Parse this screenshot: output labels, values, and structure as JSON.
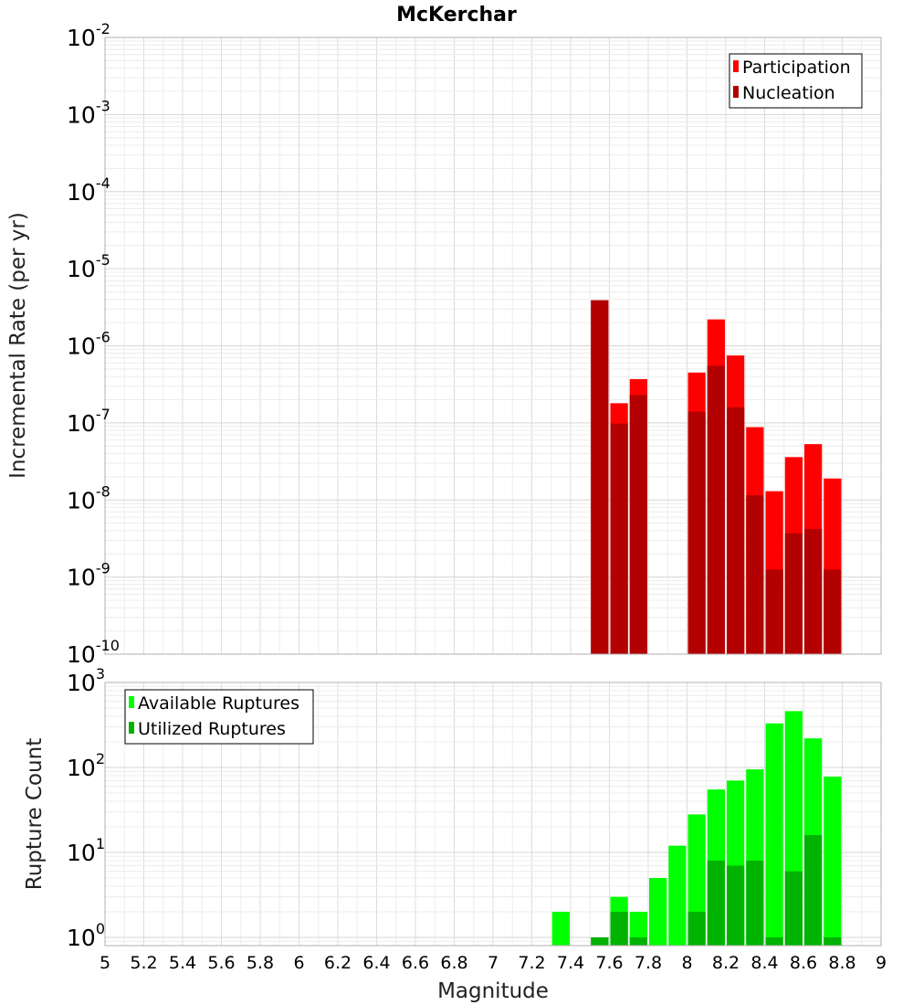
{
  "chart_data": [
    {
      "type": "bar",
      "title": "McKerchar",
      "xlabel": "",
      "ylabel": "Incremental Rate (per yr)",
      "xlim": [
        5,
        9
      ],
      "ylim": [
        1e-10,
        0.01
      ],
      "yscale": "log",
      "grid": true,
      "bar_width": 0.1,
      "legend_position": "top-right",
      "y_tick_labels": [
        {
          "base": "10",
          "exp": "-2",
          "value": 0.01
        },
        {
          "base": "10",
          "exp": "-3",
          "value": 0.001
        },
        {
          "base": "10",
          "exp": "-4",
          "value": 0.0001
        },
        {
          "base": "10",
          "exp": "-5",
          "value": 1e-05
        },
        {
          "base": "10",
          "exp": "-6",
          "value": 1e-06
        },
        {
          "base": "10",
          "exp": "-7",
          "value": 1e-07
        },
        {
          "base": "10",
          "exp": "-8",
          "value": 1e-08
        },
        {
          "base": "10",
          "exp": "-9",
          "value": 1e-09
        },
        {
          "base": "10",
          "exp": "-10",
          "value": 1e-10
        }
      ],
      "series": [
        {
          "name": "Participation",
          "color": "#ff0000",
          "points": [
            {
              "x": 7.55,
              "y": 3.9e-06
            },
            {
              "x": 7.65,
              "y": 1.8e-07
            },
            {
              "x": 7.75,
              "y": 3.7e-07
            },
            {
              "x": 8.05,
              "y": 4.5e-07
            },
            {
              "x": 8.15,
              "y": 2.2e-06
            },
            {
              "x": 8.25,
              "y": 7.5e-07
            },
            {
              "x": 8.35,
              "y": 8.8e-08
            },
            {
              "x": 8.45,
              "y": 1.3e-08
            },
            {
              "x": 8.55,
              "y": 3.6e-08
            },
            {
              "x": 8.65,
              "y": 5.3e-08
            },
            {
              "x": 8.75,
              "y": 1.9e-08
            }
          ]
        },
        {
          "name": "Nucleation",
          "color": "#b30000",
          "points": [
            {
              "x": 7.55,
              "y": 3.9e-06
            },
            {
              "x": 7.65,
              "y": 9.8e-08
            },
            {
              "x": 7.75,
              "y": 2.3e-07
            },
            {
              "x": 8.05,
              "y": 1.4e-07
            },
            {
              "x": 8.15,
              "y": 5.5e-07
            },
            {
              "x": 8.25,
              "y": 1.6e-07
            },
            {
              "x": 8.35,
              "y": 1.15e-08
            },
            {
              "x": 8.45,
              "y": 1.25e-09
            },
            {
              "x": 8.55,
              "y": 3.7e-09
            },
            {
              "x": 8.65,
              "y": 4.2e-09
            },
            {
              "x": 8.75,
              "y": 1.25e-09
            }
          ]
        }
      ]
    },
    {
      "type": "bar",
      "title": "",
      "xlabel": "Magnitude",
      "ylabel": "Rupture Count",
      "xlim": [
        5,
        9
      ],
      "ylim": [
        0.8,
        1000
      ],
      "yscale": "log",
      "grid": true,
      "bar_width": 0.1,
      "legend_position": "top-left",
      "x_tick_labels": [
        "5",
        "5.2",
        "5.4",
        "5.6",
        "5.8",
        "6",
        "6.2",
        "6.4",
        "6.6",
        "6.8",
        "7",
        "7.2",
        "7.4",
        "7.6",
        "7.8",
        "8",
        "8.2",
        "8.4",
        "8.6",
        "8.8",
        "9"
      ],
      "y_tick_labels": [
        {
          "base": "10",
          "exp": "3",
          "value": 1000
        },
        {
          "base": "10",
          "exp": "2",
          "value": 100
        },
        {
          "base": "10",
          "exp": "1",
          "value": 10
        },
        {
          "base": "10",
          "exp": "0",
          "value": 1
        }
      ],
      "series": [
        {
          "name": "Available Ruptures",
          "color": "#00ff00",
          "points": [
            {
              "x": 7.35,
              "y": 2
            },
            {
              "x": 7.55,
              "y": 1
            },
            {
              "x": 7.65,
              "y": 3
            },
            {
              "x": 7.75,
              "y": 2
            },
            {
              "x": 7.85,
              "y": 5
            },
            {
              "x": 7.95,
              "y": 12
            },
            {
              "x": 8.05,
              "y": 28
            },
            {
              "x": 8.15,
              "y": 55
            },
            {
              "x": 8.25,
              "y": 70
            },
            {
              "x": 8.35,
              "y": 95
            },
            {
              "x": 8.45,
              "y": 330
            },
            {
              "x": 8.55,
              "y": 460
            },
            {
              "x": 8.65,
              "y": 220
            },
            {
              "x": 8.75,
              "y": 78
            }
          ]
        },
        {
          "name": "Utilized Ruptures",
          "color": "#00b300",
          "points": [
            {
              "x": 7.55,
              "y": 1
            },
            {
              "x": 7.65,
              "y": 2
            },
            {
              "x": 7.75,
              "y": 1
            },
            {
              "x": 8.05,
              "y": 2
            },
            {
              "x": 8.15,
              "y": 8
            },
            {
              "x": 8.25,
              "y": 7
            },
            {
              "x": 8.35,
              "y": 8
            },
            {
              "x": 8.45,
              "y": 1
            },
            {
              "x": 8.55,
              "y": 6
            },
            {
              "x": 8.65,
              "y": 16
            },
            {
              "x": 8.75,
              "y": 1
            }
          ]
        }
      ]
    }
  ]
}
